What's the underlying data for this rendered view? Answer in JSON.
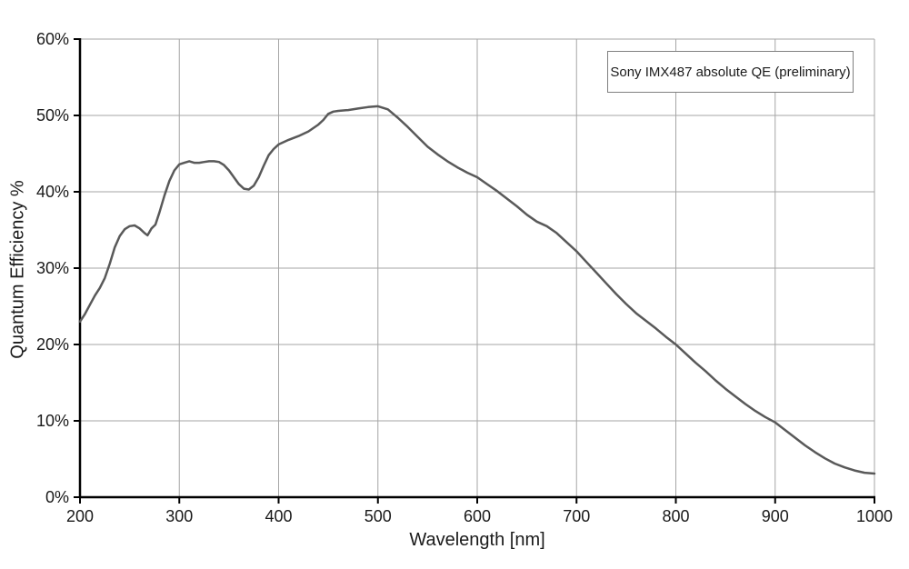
{
  "chart_data": {
    "type": "line",
    "title": "",
    "xlabel": "Wavelength [nm]",
    "ylabel": "Quantum Efficiency %",
    "legend_label": "Sony IMX487 absolute QE (preliminary)",
    "legend_position": "top-right",
    "grid": true,
    "xlim": [
      200,
      1000
    ],
    "ylim": [
      0,
      60
    ],
    "x_ticks": [
      {
        "v": 200,
        "label": "200"
      },
      {
        "v": 300,
        "label": "300"
      },
      {
        "v": 400,
        "label": "400"
      },
      {
        "v": 500,
        "label": "500"
      },
      {
        "v": 600,
        "label": "600"
      },
      {
        "v": 700,
        "label": "700"
      },
      {
        "v": 800,
        "label": "800"
      },
      {
        "v": 900,
        "label": "900"
      },
      {
        "v": 1000,
        "label": "1000"
      }
    ],
    "y_ticks": [
      {
        "v": 0,
        "label": "0%"
      },
      {
        "v": 10,
        "label": "10%"
      },
      {
        "v": 20,
        "label": "20%"
      },
      {
        "v": 30,
        "label": "30%"
      },
      {
        "v": 40,
        "label": "40%"
      },
      {
        "v": 50,
        "label": "50%"
      },
      {
        "v": 60,
        "label": "60%"
      }
    ],
    "colors": {
      "line": "#595959",
      "grid": "#a6a6a6",
      "axis": "#000000",
      "text": "#1a1a1a",
      "legend_border": "#808080",
      "background": "#ffffff"
    },
    "series": [
      {
        "name": "Sony IMX487 absolute QE (preliminary)",
        "x": [
          200,
          205,
          210,
          215,
          220,
          225,
          230,
          235,
          240,
          245,
          250,
          255,
          260,
          265,
          268,
          272,
          276,
          280,
          285,
          290,
          295,
          300,
          305,
          310,
          315,
          320,
          325,
          330,
          335,
          340,
          345,
          350,
          355,
          360,
          365,
          370,
          375,
          380,
          385,
          390,
          395,
          400,
          410,
          420,
          430,
          440,
          445,
          450,
          455,
          460,
          470,
          480,
          490,
          500,
          510,
          520,
          530,
          540,
          550,
          560,
          570,
          580,
          590,
          600,
          610,
          620,
          630,
          640,
          650,
          660,
          670,
          680,
          690,
          700,
          710,
          720,
          730,
          740,
          750,
          760,
          770,
          780,
          790,
          800,
          810,
          820,
          830,
          840,
          850,
          860,
          870,
          880,
          890,
          900,
          910,
          920,
          930,
          940,
          950,
          960,
          970,
          980,
          990,
          1000
        ],
        "y": [
          23.0,
          24.0,
          25.2,
          26.4,
          27.4,
          28.7,
          30.6,
          32.7,
          34.2,
          35.1,
          35.5,
          35.6,
          35.2,
          34.6,
          34.3,
          35.2,
          35.7,
          37.3,
          39.5,
          41.4,
          42.8,
          43.6,
          43.8,
          44.0,
          43.8,
          43.8,
          43.9,
          44.0,
          44.0,
          43.9,
          43.5,
          42.8,
          41.9,
          41.0,
          40.4,
          40.3,
          40.8,
          41.9,
          43.4,
          44.8,
          45.6,
          46.2,
          46.8,
          47.3,
          47.9,
          48.8,
          49.4,
          50.2,
          50.5,
          50.6,
          50.7,
          50.9,
          51.1,
          51.2,
          50.8,
          49.7,
          48.5,
          47.2,
          45.9,
          44.9,
          44.0,
          43.2,
          42.5,
          41.9,
          41.0,
          40.1,
          39.1,
          38.1,
          37.0,
          36.1,
          35.5,
          34.6,
          33.4,
          32.2,
          30.8,
          29.4,
          28.0,
          26.6,
          25.3,
          24.1,
          23.1,
          22.1,
          21.0,
          20.0,
          18.8,
          17.6,
          16.5,
          15.3,
          14.2,
          13.2,
          12.2,
          11.3,
          10.5,
          9.8,
          8.8,
          7.8,
          6.8,
          5.9,
          5.1,
          4.4,
          3.9,
          3.5,
          3.2,
          3.1
        ]
      }
    ]
  }
}
